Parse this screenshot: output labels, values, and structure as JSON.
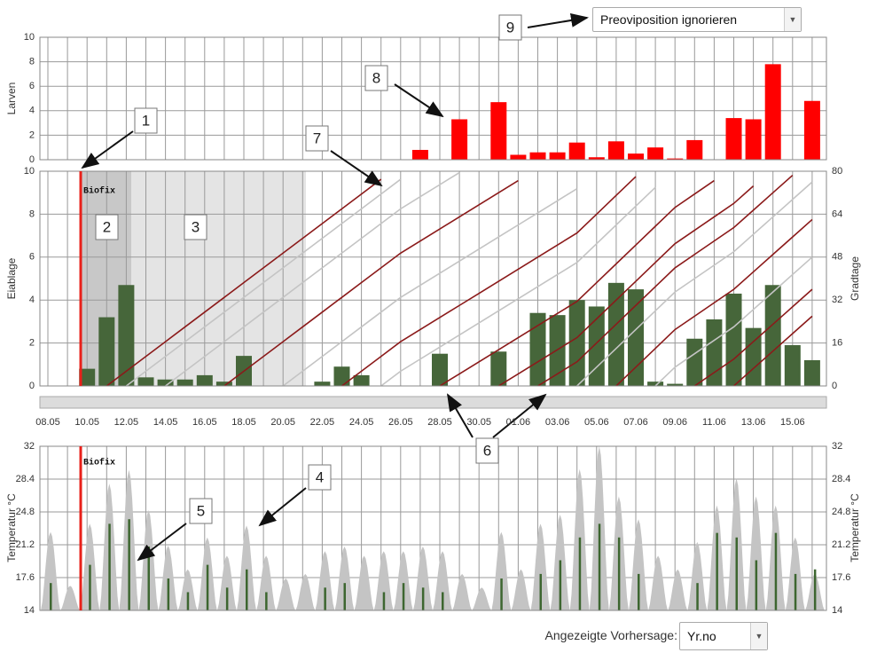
{
  "chart_data": [
    {
      "type": "bar",
      "y_label": "Larven",
      "color": "#ff0000",
      "ylim": [
        0,
        10
      ],
      "yticks": [
        0,
        2,
        4,
        6,
        8,
        10
      ],
      "grid": true,
      "values": [
        0,
        0,
        0,
        0,
        0,
        0,
        0,
        0,
        0,
        0,
        0,
        0,
        0,
        0,
        0,
        0,
        0,
        0,
        0,
        0.8,
        0,
        3.3,
        0,
        4.7,
        0.4,
        0.6,
        0.6,
        1.4,
        0.2,
        1.5,
        0.5,
        1.0,
        0.1,
        1.6,
        0,
        3.4,
        3.3,
        7.8,
        0,
        4.8
      ]
    },
    {
      "type": "combo",
      "y_label": "Eiablage",
      "y2_label": "Gradtage",
      "marker_label": "Biofix",
      "grid": true,
      "categories": [
        "08.05",
        null,
        "10.05",
        null,
        "12.05",
        null,
        "14.05",
        null,
        "16.05",
        null,
        "18.05",
        null,
        "20.05",
        null,
        "22.05",
        null,
        "24.05",
        null,
        "26.05",
        null,
        "28.05",
        null,
        "30.05",
        null,
        "01.06",
        null,
        "03.06",
        null,
        "05.06",
        null,
        "07.06",
        null,
        "09.06",
        null,
        "11.06",
        null,
        "13.06",
        null,
        "15.06",
        null
      ],
      "ylim": [
        0,
        10
      ],
      "yticks": [
        0,
        2,
        4,
        6,
        8,
        10
      ],
      "y2lim": [
        0,
        80
      ],
      "y2ticks": [
        0,
        16,
        32,
        48,
        64,
        80
      ],
      "series": [
        {
          "type": "bar",
          "color": "#46663a",
          "values": [
            0,
            0,
            0.8,
            3.2,
            4.7,
            0.4,
            0.3,
            0.3,
            0.5,
            0.2,
            1.4,
            0,
            0,
            0,
            0.2,
            0.9,
            0.5,
            0,
            0,
            0,
            1.5,
            0,
            0,
            1.6,
            0,
            3.4,
            3.3,
            4.0,
            3.7,
            4.8,
            4.5,
            0.2,
            0.1,
            2.2,
            3.1,
            4.3,
            2.7,
            4.7,
            1.9,
            1.2
          ]
        },
        {
          "type": "line",
          "axis": "y2",
          "color": "#c4c4c4",
          "values": [
            null,
            null,
            null,
            null,
            0,
            5.5,
            11,
            16.5,
            22,
            27.5,
            33,
            38.5,
            44,
            49.5,
            55,
            60.5,
            66,
            71.5,
            77,
            null,
            null,
            null,
            null,
            null,
            null,
            null,
            null,
            null,
            null,
            null,
            null,
            null,
            null,
            null,
            null,
            null,
            null,
            null,
            null,
            null
          ]
        },
        {
          "type": "line",
          "axis": "y2",
          "color": "#c4c4c4",
          "values": [
            null,
            null,
            null,
            null,
            null,
            null,
            0,
            5.5,
            11,
            16.5,
            22,
            27.5,
            33,
            38.5,
            44,
            49.5,
            55,
            60.5,
            66,
            70.5,
            75,
            79.5,
            null,
            null,
            null,
            null,
            null,
            null,
            null,
            null,
            null,
            null,
            null,
            null,
            null,
            null,
            null,
            null,
            null,
            null
          ]
        },
        {
          "type": "line",
          "axis": "y2",
          "color": "#c4c4c4",
          "values": [
            null,
            null,
            null,
            null,
            null,
            null,
            null,
            null,
            null,
            null,
            null,
            null,
            0,
            5.5,
            11,
            16.5,
            22,
            27.5,
            33,
            37.5,
            42,
            46.5,
            51,
            55.5,
            60,
            64.5,
            69,
            73.5,
            null,
            null,
            null,
            null,
            null,
            null,
            null,
            null,
            null,
            null,
            null,
            null
          ]
        },
        {
          "type": "line",
          "axis": "y2",
          "color": "#c4c4c4",
          "values": [
            null,
            null,
            null,
            null,
            null,
            null,
            null,
            null,
            null,
            null,
            null,
            null,
            null,
            null,
            null,
            null,
            null,
            0,
            5.5,
            10,
            14.5,
            19,
            23.5,
            28,
            32.5,
            37,
            41.5,
            46,
            53,
            60,
            67,
            74,
            null,
            null,
            null,
            null,
            null,
            null,
            null,
            null
          ]
        },
        {
          "type": "line",
          "axis": "y2",
          "color": "#c4c4c4",
          "values": [
            null,
            null,
            null,
            null,
            null,
            null,
            null,
            null,
            null,
            null,
            null,
            null,
            null,
            null,
            null,
            null,
            null,
            null,
            null,
            null,
            null,
            null,
            null,
            null,
            null,
            null,
            null,
            0,
            7,
            14,
            21,
            28,
            35,
            40,
            45,
            50,
            56.5,
            63,
            69.5,
            76
          ]
        },
        {
          "type": "line",
          "axis": "y2",
          "color": "#c4c4c4",
          "values": [
            null,
            null,
            null,
            null,
            null,
            null,
            null,
            null,
            null,
            null,
            null,
            null,
            null,
            null,
            null,
            null,
            null,
            null,
            null,
            null,
            null,
            null,
            null,
            null,
            null,
            null,
            null,
            null,
            null,
            null,
            null,
            0,
            7,
            12,
            17,
            22,
            28.5,
            35,
            41.5,
            48
          ]
        },
        {
          "type": "line",
          "axis": "y2",
          "color": "#8b1a1a",
          "values": [
            null,
            null,
            null,
            0,
            5.5,
            11,
            16.5,
            22,
            27.5,
            33,
            38.5,
            44,
            49.5,
            55,
            60.5,
            66,
            71.5,
            77,
            null,
            null,
            null,
            null,
            null,
            null,
            null,
            null,
            null,
            null,
            null,
            null,
            null,
            null,
            null,
            null,
            null,
            null,
            null,
            null,
            null,
            null
          ]
        },
        {
          "type": "line",
          "axis": "y2",
          "color": "#8b1a1a",
          "values": [
            null,
            null,
            null,
            null,
            null,
            null,
            null,
            null,
            null,
            0,
            5.5,
            11,
            16.5,
            22,
            27.5,
            33,
            38.5,
            44,
            49.5,
            54,
            58.5,
            63,
            67.5,
            72,
            76.5,
            null,
            null,
            null,
            null,
            null,
            null,
            null,
            null,
            null,
            null,
            null,
            null,
            null,
            null,
            null
          ]
        },
        {
          "type": "line",
          "axis": "y2",
          "color": "#8b1a1a",
          "values": [
            null,
            null,
            null,
            null,
            null,
            null,
            null,
            null,
            null,
            null,
            null,
            null,
            null,
            null,
            null,
            0,
            5.5,
            11,
            16.5,
            21,
            25.5,
            30,
            34.5,
            39,
            43.5,
            48,
            52.5,
            57,
            64,
            71,
            78,
            null,
            null,
            null,
            null,
            null,
            null,
            null,
            null,
            null
          ]
        },
        {
          "type": "line",
          "axis": "y2",
          "color": "#8b1a1a",
          "values": [
            null,
            null,
            null,
            null,
            null,
            null,
            null,
            null,
            null,
            null,
            null,
            null,
            null,
            null,
            null,
            null,
            null,
            null,
            null,
            null,
            0,
            4.5,
            9,
            13.5,
            18,
            22.5,
            27,
            31.5,
            38.5,
            45.5,
            52.5,
            59.5,
            66.5,
            71.5,
            76.5,
            null,
            null,
            null,
            null,
            null
          ]
        },
        {
          "type": "line",
          "axis": "y2",
          "color": "#8b1a1a",
          "values": [
            null,
            null,
            null,
            null,
            null,
            null,
            null,
            null,
            null,
            null,
            null,
            null,
            null,
            null,
            null,
            null,
            null,
            null,
            null,
            null,
            null,
            null,
            null,
            0,
            4.5,
            9,
            13.5,
            18,
            25,
            32,
            39,
            46,
            53,
            58,
            63,
            68,
            74.5,
            null,
            null,
            null
          ]
        },
        {
          "type": "line",
          "axis": "y2",
          "color": "#8b1a1a",
          "values": [
            null,
            null,
            null,
            null,
            null,
            null,
            null,
            null,
            null,
            null,
            null,
            null,
            null,
            null,
            null,
            null,
            null,
            null,
            null,
            null,
            null,
            null,
            null,
            null,
            null,
            0,
            4.5,
            9,
            16,
            23,
            30,
            37,
            44,
            49,
            54,
            59,
            65.5,
            72,
            78.5,
            null
          ]
        },
        {
          "type": "line",
          "axis": "y2",
          "color": "#8b1a1a",
          "values": [
            null,
            null,
            null,
            null,
            null,
            null,
            null,
            null,
            null,
            null,
            null,
            null,
            null,
            null,
            null,
            null,
            null,
            null,
            null,
            null,
            null,
            null,
            null,
            null,
            null,
            null,
            null,
            null,
            null,
            0,
            7,
            14,
            21,
            26,
            31,
            36,
            42.5,
            49,
            55.5,
            62
          ]
        },
        {
          "type": "line",
          "axis": "y2",
          "color": "#8b1a1a",
          "values": [
            null,
            null,
            null,
            null,
            null,
            null,
            null,
            null,
            null,
            null,
            null,
            null,
            null,
            null,
            null,
            null,
            null,
            null,
            null,
            null,
            null,
            null,
            null,
            null,
            null,
            null,
            null,
            null,
            null,
            null,
            null,
            null,
            null,
            0,
            5,
            10,
            16.5,
            23,
            29.5,
            36
          ]
        },
        {
          "type": "line",
          "axis": "y2",
          "color": "#8b1a1a",
          "values": [
            null,
            null,
            null,
            null,
            null,
            null,
            null,
            null,
            null,
            null,
            null,
            null,
            null,
            null,
            null,
            null,
            null,
            null,
            null,
            null,
            null,
            null,
            null,
            null,
            null,
            null,
            null,
            null,
            null,
            null,
            null,
            null,
            null,
            null,
            null,
            0,
            6.5,
            13,
            19.5,
            26
          ]
        }
      ]
    },
    {
      "type": "area",
      "y_label": "Temperatur °C",
      "marker_label": "Biofix",
      "ylim": [
        14,
        32
      ],
      "yticks": [
        14,
        17.6,
        21.2,
        24.8,
        28.4,
        32
      ],
      "grid": true,
      "series": [
        {
          "type": "area",
          "color": "#c4c4c4",
          "values": [
            22.6,
            16.7,
            23.5,
            27.9,
            29.4,
            25,
            21.1,
            18.5,
            22,
            20,
            23.3,
            20,
            17.5,
            18,
            20.5,
            21,
            20,
            20.5,
            20.5,
            21,
            20.5,
            18,
            16.5,
            22.6,
            18.5,
            23.5,
            24.5,
            29.5,
            32,
            26.5,
            24,
            20,
            18.5,
            21.5,
            25.5,
            28.5,
            26.5,
            25.5,
            22,
            18
          ]
        },
        {
          "type": "spike",
          "color": "#3d6630",
          "values": [
            17,
            null,
            19,
            23.5,
            24,
            21,
            17.5,
            16,
            19,
            16.5,
            18.5,
            16,
            null,
            null,
            16.5,
            17,
            null,
            16,
            17,
            16.5,
            16,
            null,
            null,
            17.5,
            null,
            18,
            19.5,
            22,
            23.5,
            22,
            18,
            null,
            null,
            17,
            22.5,
            22,
            19.5,
            22.5,
            18,
            18.5
          ]
        }
      ]
    }
  ],
  "annotations": [
    "1",
    "2",
    "3",
    "4",
    "5",
    "6",
    "7",
    "8",
    "9"
  ],
  "controls": {
    "oviposition_select": "Preoviposition ignorieren",
    "forecast_label": "Angezeigte Vorhersage:",
    "forecast_select": "Yr.no"
  }
}
